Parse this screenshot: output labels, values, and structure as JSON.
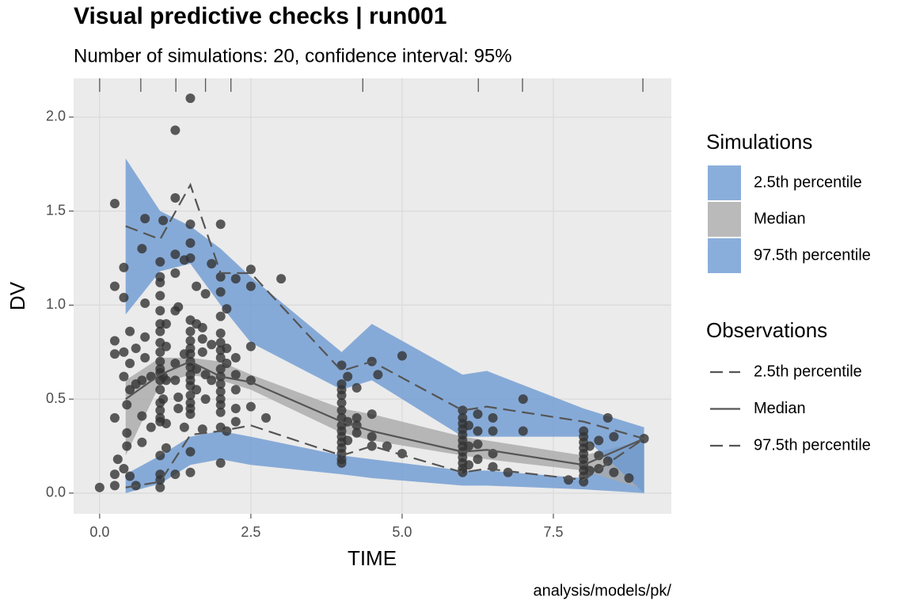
{
  "chart_data": {
    "type": "vpc",
    "title": "Visual predictive checks | run001",
    "subtitle": "Number of simulations: 20, confidence interval: 95%",
    "x_label": "TIME",
    "y_label": "DV",
    "caption": "analysis/models/pk/",
    "xlim": [
      -0.43,
      9.45
    ],
    "ylim": [
      -0.11,
      2.206
    ],
    "xticks": [
      {
        "value": 0,
        "label": "0.0"
      },
      2.5,
      {
        "value": 5,
        "label": "5.0"
      },
      7.5
    ],
    "yticks": [
      {
        "value": 0,
        "label": "0.0"
      },
      0.5,
      {
        "value": 1,
        "label": "1.0"
      },
      1.5,
      {
        "value": 2,
        "label": "2.0"
      }
    ],
    "grid": true,
    "bin_boundaries": [
      0,
      0.68,
      1.26,
      1.75,
      2.17,
      4.35,
      6.26,
      6.99,
      8.98
    ],
    "bins_x": [
      0.43,
      1.0,
      1.5,
      2.0,
      2.5,
      4.0,
      4.5,
      6.0,
      6.4,
      8.0,
      9.0
    ],
    "simulations_title": "Simulations",
    "simulations": [
      {
        "name": "2.5th percentile",
        "color": "#6d9ad2",
        "lower": [
          0.0,
          0.05,
          0.15,
          0.18,
          0.15,
          0.1,
          0.08,
          0.04,
          0.04,
          0.02,
          0.0
        ],
        "upper": [
          0.1,
          0.2,
          0.3,
          0.33,
          0.3,
          0.2,
          0.18,
          0.12,
          0.12,
          0.08,
          0.3
        ]
      },
      {
        "name": "Median",
        "color": "#a9a9a9",
        "lower": [
          0.2,
          0.58,
          0.63,
          0.6,
          0.55,
          0.32,
          0.28,
          0.2,
          0.18,
          0.12,
          0.02
        ],
        "upper": [
          0.6,
          0.72,
          0.72,
          0.7,
          0.63,
          0.45,
          0.42,
          0.3,
          0.28,
          0.2,
          0.28
        ]
      },
      {
        "name": "97.5th percentile",
        "color": "#6d9ad2",
        "lower": [
          0.95,
          1.18,
          1.22,
          1.0,
          0.8,
          0.55,
          0.6,
          0.3,
          0.3,
          0.3,
          0.0
        ],
        "upper": [
          1.78,
          1.5,
          1.42,
          1.3,
          1.15,
          0.75,
          0.9,
          0.63,
          0.65,
          0.45,
          0.35
        ]
      }
    ],
    "observations_title": "Observations",
    "observed_lines": [
      {
        "name": "2.5th percentile",
        "color": "#555555",
        "dash": true,
        "values": [
          0.03,
          0.06,
          0.31,
          0.33,
          0.36,
          0.2,
          0.25,
          0.11,
          0.13,
          0.07,
          0.29
        ]
      },
      {
        "name": "Median",
        "color": "#555555",
        "dash": false,
        "values": [
          0.5,
          0.63,
          0.7,
          0.62,
          0.59,
          0.38,
          0.33,
          0.22,
          0.23,
          0.15,
          0.29
        ]
      },
      {
        "name": "97.5th percentile",
        "color": "#555555",
        "dash": true,
        "values": [
          1.42,
          1.35,
          1.64,
          1.17,
          1.17,
          0.65,
          0.7,
          0.44,
          0.46,
          0.38,
          0.29
        ]
      }
    ],
    "point_color": "#333333",
    "observations": [
      {
        "time": 0,
        "dv": [
          0.03
        ]
      },
      {
        "time": 0.25,
        "dv": [
          1.54,
          1.1,
          0.81,
          0.74,
          0.4,
          0.1,
          0.04
        ]
      },
      {
        "time": 0.3,
        "dv": [
          0.18
        ]
      },
      {
        "time": 0.4,
        "dv": [
          0.13,
          0.62,
          0.75,
          1.04,
          1.2
        ]
      },
      {
        "time": 0.45,
        "dv": [
          0.47,
          0.32,
          0.25
        ]
      },
      {
        "time": 0.5,
        "dv": [
          0.86,
          0.69,
          0.55,
          0.09
        ]
      },
      {
        "time": 0.6,
        "dv": [
          0.77,
          0.58,
          0.04
        ]
      },
      {
        "time": 0.7,
        "dv": [
          1.3,
          0.41,
          0.27,
          0.6
        ]
      },
      {
        "time": 0.75,
        "dv": [
          1.46,
          1.01,
          0.83,
          0.72
        ]
      },
      {
        "time": 0.85,
        "dv": [
          0.62,
          0.35
        ]
      },
      {
        "time": 1.0,
        "dv": [
          1.23,
          1.15,
          1.12,
          1.05,
          0.97,
          0.9,
          0.86,
          0.8,
          0.75,
          0.7,
          0.66,
          0.64,
          0.6,
          0.55,
          0.48,
          0.44,
          0.4,
          0.38,
          0.2,
          0.1,
          0.07,
          0.03
        ]
      },
      {
        "time": 1.05,
        "dv": [
          1.45,
          0.62,
          0.5
        ]
      },
      {
        "time": 1.1,
        "dv": [
          0.9,
          0.78,
          0.6,
          0.37,
          0.24
        ]
      },
      {
        "time": 1.25,
        "dv": [
          1.93,
          1.57,
          1.27,
          1.17,
          0.97,
          0.69,
          0.6,
          0.1
        ]
      },
      {
        "time": 1.3,
        "dv": [
          0.99,
          0.45,
          0.51
        ]
      },
      {
        "time": 1.4,
        "dv": [
          1.24,
          0.74,
          0.35
        ]
      },
      {
        "time": 1.5,
        "dv": [
          2.1,
          1.43,
          1.33,
          1.25,
          0.92,
          0.86,
          0.81,
          0.77,
          0.74,
          0.7,
          0.67,
          0.63,
          0.6,
          0.57,
          0.52,
          0.48,
          0.45,
          0.42,
          0.22,
          0.11
        ]
      },
      {
        "time": 1.6,
        "dv": [
          1.1,
          0.9,
          0.66,
          0.55
        ]
      },
      {
        "time": 1.7,
        "dv": [
          0.88,
          0.82,
          0.75,
          0.34
        ]
      },
      {
        "time": 1.75,
        "dv": [
          1.06,
          0.63,
          0.5
        ]
      },
      {
        "time": 1.85,
        "dv": [
          1.22,
          0.79,
          0.6
        ]
      },
      {
        "time": 2.0,
        "dv": [
          1.43,
          1.15,
          1.07,
          0.94,
          0.85,
          0.8,
          0.76,
          0.72,
          0.66,
          0.62,
          0.58,
          0.54,
          0.5,
          0.47,
          0.43,
          0.35,
          0.16
        ]
      },
      {
        "time": 2.1,
        "dv": [
          0.98,
          0.77,
          0.69,
          0.33
        ]
      },
      {
        "time": 2.25,
        "dv": [
          1.14,
          0.72,
          0.63,
          0.55,
          0.45,
          0.38
        ]
      },
      {
        "time": 2.5,
        "dv": [
          1.19,
          1.1,
          0.78,
          0.6,
          0.46
        ]
      },
      {
        "time": 2.75,
        "dv": [
          0.4
        ]
      },
      {
        "time": 3.0,
        "dv": [
          1.14
        ]
      },
      {
        "time": 4.0,
        "dv": [
          0.68,
          0.58,
          0.55,
          0.52,
          0.48,
          0.44,
          0.4,
          0.36,
          0.33,
          0.3,
          0.27,
          0.24,
          0.21,
          0.18,
          0.16
        ]
      },
      {
        "time": 4.1,
        "dv": [
          0.62,
          0.38,
          0.28
        ]
      },
      {
        "time": 4.25,
        "dv": [
          0.56,
          0.4,
          0.36,
          0.32
        ]
      },
      {
        "time": 4.5,
        "dv": [
          0.7,
          0.42,
          0.3,
          0.25
        ]
      },
      {
        "time": 4.6,
        "dv": [
          0.63
        ]
      },
      {
        "time": 4.75,
        "dv": [
          0.25
        ]
      },
      {
        "time": 5.0,
        "dv": [
          0.73,
          0.21
        ]
      },
      {
        "time": 6.0,
        "dv": [
          0.44,
          0.4,
          0.37,
          0.34,
          0.31,
          0.28,
          0.25,
          0.22,
          0.19,
          0.16,
          0.13,
          0.11
        ]
      },
      {
        "time": 6.1,
        "dv": [
          0.36,
          0.25,
          0.15
        ]
      },
      {
        "time": 6.25,
        "dv": [
          0.42,
          0.33,
          0.26,
          0.18
        ]
      },
      {
        "time": 6.5,
        "dv": [
          0.4,
          0.33,
          0.21,
          0.14
        ]
      },
      {
        "time": 6.75,
        "dv": [
          0.11
        ]
      },
      {
        "time": 7.0,
        "dv": [
          0.5,
          0.33
        ]
      },
      {
        "time": 7.75,
        "dv": [
          0.07
        ]
      },
      {
        "time": 8.0,
        "dv": [
          0.33,
          0.3,
          0.27,
          0.24,
          0.21,
          0.18,
          0.15,
          0.12,
          0.09,
          0.06
        ]
      },
      {
        "time": 8.1,
        "dv": [
          0.25,
          0.12
        ]
      },
      {
        "time": 8.25,
        "dv": [
          0.28,
          0.2,
          0.13
        ]
      },
      {
        "time": 8.4,
        "dv": [
          0.4,
          0.17
        ]
      },
      {
        "time": 8.5,
        "dv": [
          0.3,
          0.11
        ]
      },
      {
        "time": 8.75,
        "dv": [
          0.08
        ]
      },
      {
        "time": 9.0,
        "dv": [
          0.29
        ]
      }
    ]
  }
}
